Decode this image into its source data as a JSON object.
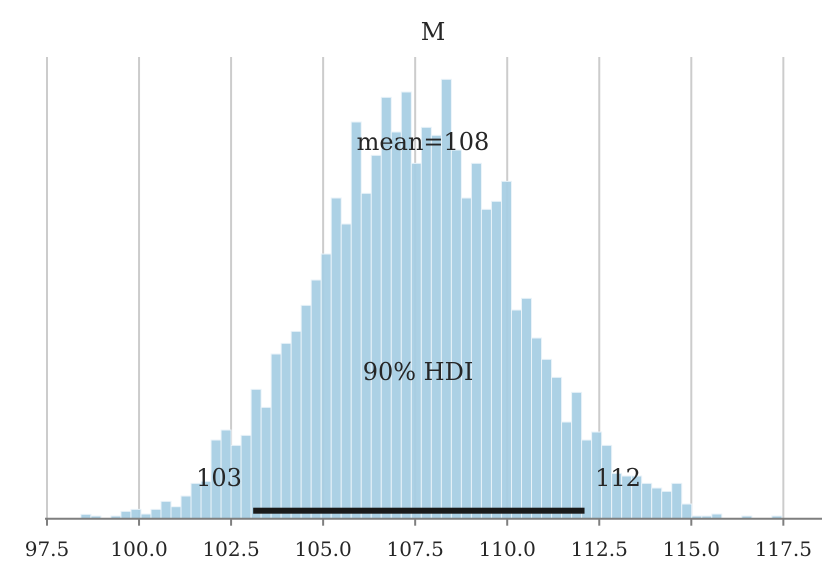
{
  "chart_data": {
    "type": "bar",
    "title": "M",
    "xlabel": "",
    "ylabel": "",
    "xlim": [
      97.5,
      118.55
    ],
    "ylim": [
      0,
      1385
    ],
    "grid": "vertical",
    "xticks": [
      97.5,
      100.0,
      102.5,
      105.0,
      107.5,
      110.0,
      112.5,
      115.0,
      117.5
    ],
    "xtick_labels": [
      "97.5",
      "100.0",
      "102.5",
      "105.0",
      "107.5",
      "110.0",
      "112.5",
      "115.0",
      "117.5"
    ],
    "bin_start": 98.42,
    "bin_width": 0.272,
    "values": [
      13,
      8,
      0,
      8,
      22,
      28,
      14,
      28,
      52,
      36,
      68,
      106,
      112,
      236,
      266,
      220,
      250,
      388,
      334,
      494,
      526,
      562,
      640,
      716,
      794,
      962,
      884,
      1190,
      976,
      1090,
      1264,
      1160,
      1280,
      1066,
      1174,
      1150,
      1318,
      1106,
      962,
      1066,
      928,
      952,
      1012,
      626,
      661,
      542,
      478,
      424,
      290,
      379,
      236,
      260,
      220,
      136,
      128,
      128,
      106,
      92,
      82,
      106,
      44,
      8,
      8,
      14,
      0,
      0,
      8,
      0,
      0,
      8
    ],
    "bar_color": "#a6cde3",
    "mean_label": "mean=108",
    "hdi_label": "90% HDI",
    "hdi": [
      103.1,
      112.1
    ],
    "hdi_low_label": "103",
    "hdi_high_label": "112"
  }
}
